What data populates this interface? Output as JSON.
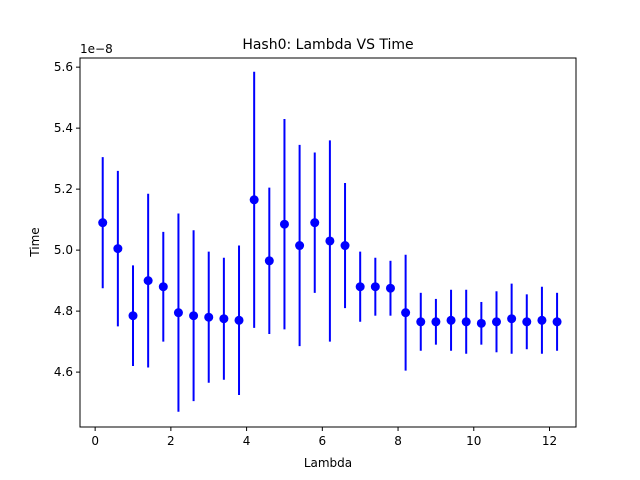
{
  "chart_data": {
    "type": "scatter",
    "title": "Hash0: Lambda VS Time",
    "xlabel": "Lambda",
    "ylabel": "Time",
    "offset_text": "1e−8",
    "xlim": [
      -0.4,
      12.7
    ],
    "ylim": [
      4.42,
      5.63
    ],
    "xticks": [
      0,
      2,
      4,
      6,
      8,
      10,
      12
    ],
    "xtick_labels": [
      "0",
      "2",
      "4",
      "6",
      "8",
      "10",
      "12"
    ],
    "yticks": [
      4.6,
      4.8,
      5.0,
      5.2,
      5.4,
      5.6
    ],
    "ytick_labels": [
      "4.6",
      "4.8",
      "5.0",
      "5.2",
      "5.4",
      "5.6"
    ],
    "grid": false,
    "color": "#0000ff",
    "series": [
      {
        "x": [
          0.2,
          0.6,
          1.0,
          1.4,
          1.8,
          2.2,
          2.6,
          3.0,
          3.4,
          3.8,
          4.2,
          4.6,
          5.0,
          5.4,
          5.8,
          6.2,
          6.6,
          7.0,
          7.4,
          7.8,
          8.2,
          8.6,
          9.0,
          9.4,
          9.8,
          10.2,
          10.6,
          11.0,
          11.4,
          11.8,
          12.2
        ],
        "y": [
          5.09,
          5.005,
          4.785,
          4.9,
          4.88,
          4.795,
          4.785,
          4.78,
          4.775,
          4.77,
          5.165,
          4.965,
          5.085,
          5.015,
          5.09,
          5.03,
          5.015,
          4.88,
          4.88,
          4.875,
          4.795,
          4.765,
          4.765,
          4.77,
          4.765,
          4.76,
          4.765,
          4.775,
          4.765,
          4.77,
          4.765
        ],
        "yerr": [
          0.215,
          0.255,
          0.165,
          0.285,
          0.18,
          0.325,
          0.28,
          0.215,
          0.2,
          0.245,
          0.42,
          0.24,
          0.345,
          0.33,
          0.23,
          0.33,
          0.205,
          0.115,
          0.095,
          0.09,
          0.19,
          0.095,
          0.075,
          0.1,
          0.105,
          0.07,
          0.1,
          0.115,
          0.09,
          0.11,
          0.095
        ]
      }
    ]
  }
}
